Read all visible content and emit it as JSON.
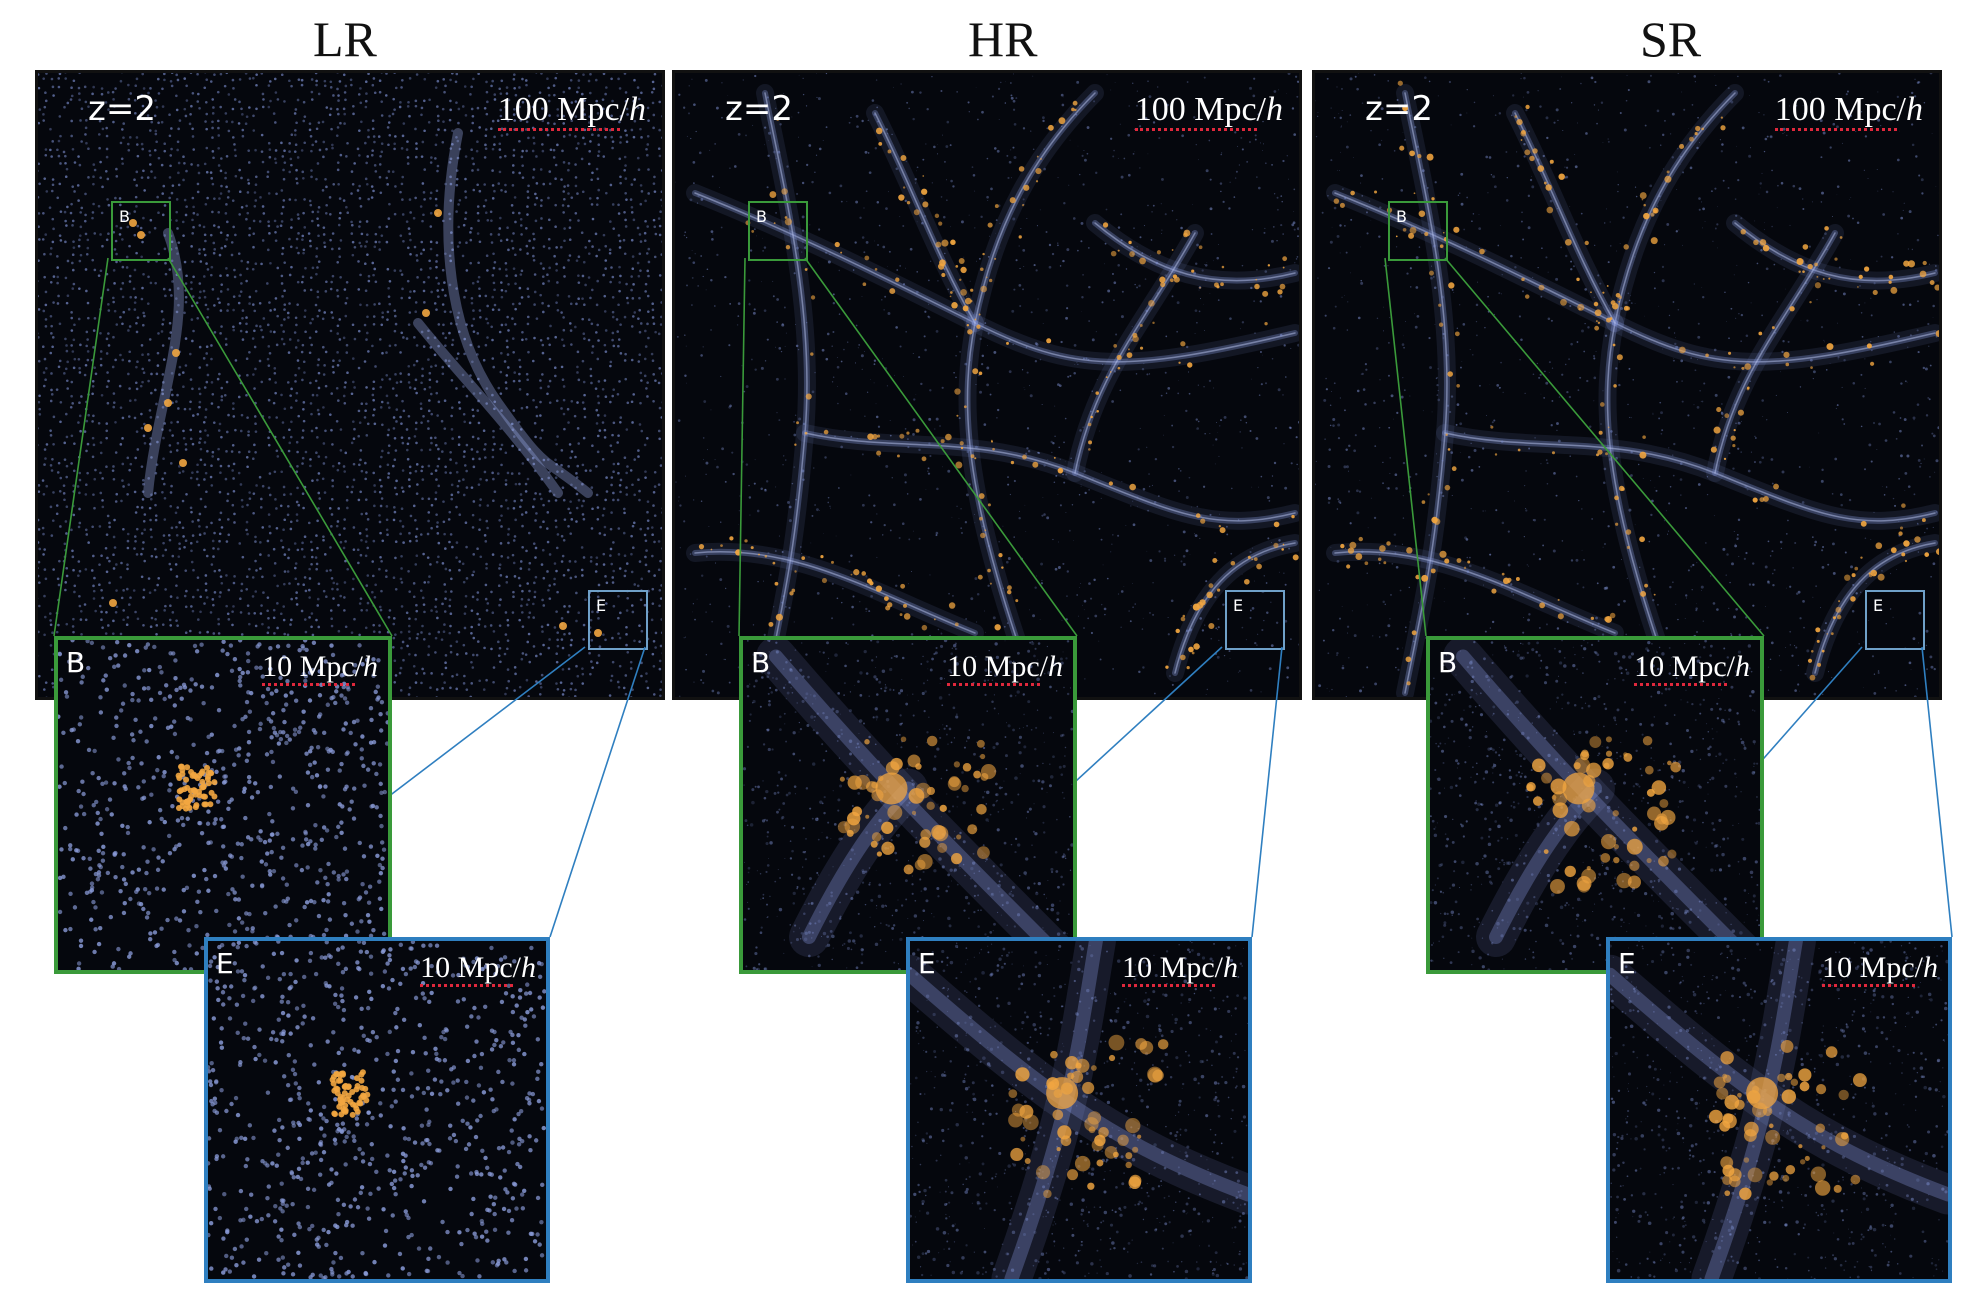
{
  "columns": [
    {
      "title": "LR",
      "redshift": "z=2",
      "scale": "100 Mpc",
      "scale_h": "h",
      "zoom_b_label": "B",
      "zoom_e_label": "E",
      "zoom_scale": "10 Mpc",
      "zoom_scale_h": "h",
      "roi_b": "B",
      "roi_e": "E"
    },
    {
      "title": "HR",
      "redshift": "z=2",
      "scale": "100 Mpc",
      "scale_h": "h",
      "zoom_b_label": "B",
      "zoom_e_label": "E",
      "zoom_scale": "10 Mpc",
      "zoom_scale_h": "h",
      "roi_b": "B",
      "roi_e": "E"
    },
    {
      "title": "SR",
      "redshift": "z=2",
      "scale": "100 Mpc",
      "scale_h": "h",
      "zoom_b_label": "B",
      "zoom_e_label": "E",
      "zoom_scale": "10 Mpc",
      "zoom_scale_h": "h",
      "roi_b": "B",
      "roi_e": "E"
    }
  ],
  "colors": {
    "background": "#05070d",
    "filament_blue": "#7d8fd0",
    "halo_orange": "#f2a640",
    "roi_b_border": "#3a9a3a",
    "roi_e_border": "#2f7fc0",
    "scale_underline": "#e0283c"
  }
}
